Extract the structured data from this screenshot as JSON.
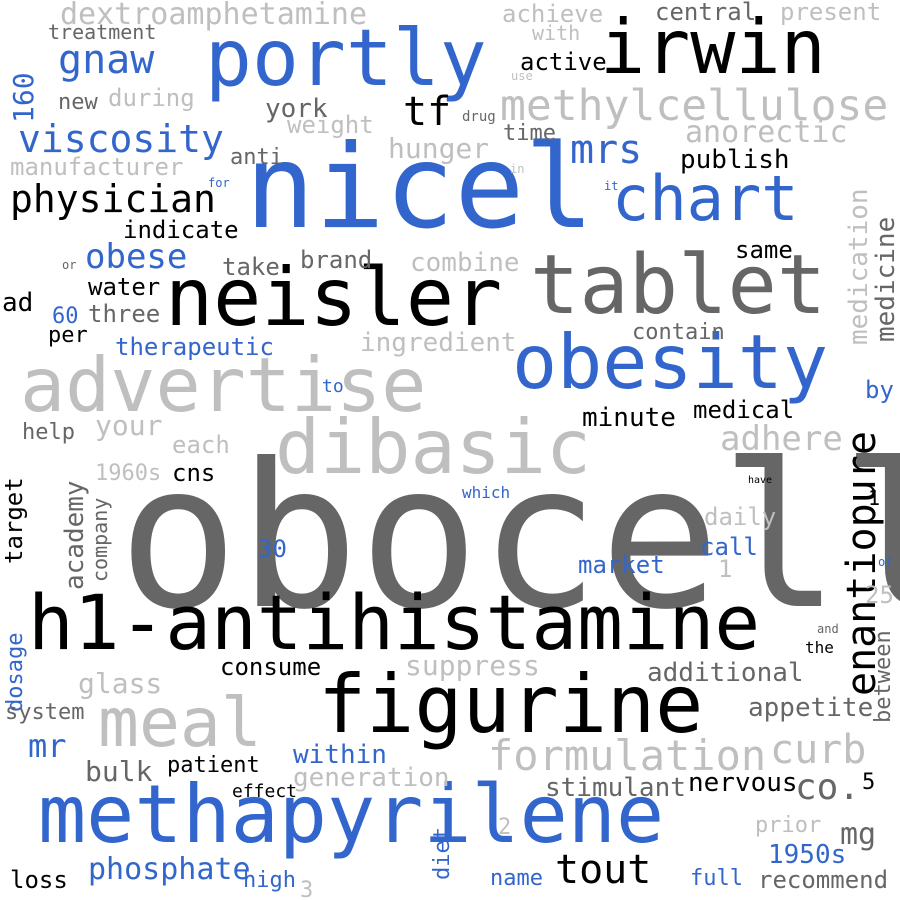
{
  "palette": {
    "black": "#000000",
    "dark_gray": "#666666",
    "light_gray": "#bfbfbf",
    "blue": "#3366cc"
  },
  "words": [
    {
      "text": "obocell",
      "color": "dark_gray"
    },
    {
      "text": "nicel",
      "color": "blue"
    },
    {
      "text": "h1-antihistamine",
      "color": "black"
    },
    {
      "text": "methapyrilene",
      "color": "blue"
    },
    {
      "text": "figurine",
      "color": "black"
    },
    {
      "text": "tablet",
      "color": "dark_gray"
    },
    {
      "text": "neisler",
      "color": "black"
    },
    {
      "text": "advertise",
      "color": "light_gray"
    },
    {
      "text": "dibasic",
      "color": "light_gray"
    },
    {
      "text": "obesity",
      "color": "blue"
    },
    {
      "text": "portly",
      "color": "blue"
    },
    {
      "text": "irwin",
      "color": "black"
    },
    {
      "text": "chart",
      "color": "blue"
    },
    {
      "text": "meal",
      "color": "light_gray"
    },
    {
      "text": "methylcellulose",
      "color": "light_gray"
    },
    {
      "text": "formulation",
      "color": "light_gray"
    },
    {
      "text": "enantiopure",
      "color": "black"
    },
    {
      "text": "physician",
      "color": "black"
    },
    {
      "text": "viscosity",
      "color": "blue"
    },
    {
      "text": "curb",
      "color": "light_gray"
    },
    {
      "text": "tout",
      "color": "black"
    },
    {
      "text": "gnaw",
      "color": "blue"
    },
    {
      "text": "dextroamphetamine",
      "color": "light_gray"
    },
    {
      "text": "tf",
      "color": "black"
    },
    {
      "text": "mrs",
      "color": "blue"
    },
    {
      "text": "adhere",
      "color": "light_gray"
    },
    {
      "text": "co.",
      "color": "dark_gray"
    },
    {
      "text": "obese",
      "color": "blue"
    },
    {
      "text": "phosphate",
      "color": "blue"
    },
    {
      "text": "anorectic",
      "color": "light_gray"
    },
    {
      "text": "mr",
      "color": "blue"
    },
    {
      "text": "mg",
      "color": "dark_gray"
    },
    {
      "text": "1950s",
      "color": "blue"
    },
    {
      "text": "160",
      "color": "blue"
    },
    {
      "text": "hunger",
      "color": "light_gray"
    },
    {
      "text": "medication",
      "color": "light_gray"
    },
    {
      "text": "medicine",
      "color": "dark_gray"
    },
    {
      "text": "academy",
      "color": "dark_gray"
    },
    {
      "text": "suppress",
      "color": "light_gray"
    },
    {
      "text": "glass",
      "color": "light_gray"
    },
    {
      "text": "additional",
      "color": "dark_gray"
    },
    {
      "text": "appetite",
      "color": "dark_gray"
    },
    {
      "text": "bulk",
      "color": "dark_gray"
    },
    {
      "text": "stimulant",
      "color": "dark_gray"
    },
    {
      "text": "generation",
      "color": "light_gray"
    },
    {
      "text": "within",
      "color": "blue"
    },
    {
      "text": "nervous",
      "color": "black"
    },
    {
      "text": "ingredient",
      "color": "light_gray"
    },
    {
      "text": "therapeutic",
      "color": "blue"
    },
    {
      "text": "combine",
      "color": "light_gray"
    },
    {
      "text": "manufacturer",
      "color": "light_gray"
    },
    {
      "text": "weight",
      "color": "light_gray"
    },
    {
      "text": "central",
      "color": "dark_gray"
    },
    {
      "text": "present",
      "color": "light_gray"
    },
    {
      "text": "achieve",
      "color": "light_gray"
    },
    {
      "text": "active",
      "color": "black"
    },
    {
      "text": "with",
      "color": "light_gray"
    },
    {
      "text": "treatment",
      "color": "dark_gray"
    },
    {
      "text": "new",
      "color": "dark_gray"
    },
    {
      "text": "during",
      "color": "light_gray"
    },
    {
      "text": "york",
      "color": "dark_gray"
    },
    {
      "text": "time",
      "color": "dark_gray"
    },
    {
      "text": "publish",
      "color": "black"
    },
    {
      "text": "anti",
      "color": "dark_gray"
    },
    {
      "text": "indicate",
      "color": "black"
    },
    {
      "text": "take",
      "color": "dark_gray"
    },
    {
      "text": "brand",
      "color": "dark_gray"
    },
    {
      "text": "same",
      "color": "black"
    },
    {
      "text": "water",
      "color": "black"
    },
    {
      "text": "three",
      "color": "dark_gray"
    },
    {
      "text": "60",
      "color": "blue"
    },
    {
      "text": "ad",
      "color": "black"
    },
    {
      "text": "per",
      "color": "black"
    },
    {
      "text": "contain",
      "color": "dark_gray"
    },
    {
      "text": "minute",
      "color": "black"
    },
    {
      "text": "medical",
      "color": "black"
    },
    {
      "text": "help",
      "color": "dark_gray"
    },
    {
      "text": "your",
      "color": "light_gray"
    },
    {
      "text": "each",
      "color": "light_gray"
    },
    {
      "text": "1960s",
      "color": "light_gray"
    },
    {
      "text": "cns",
      "color": "black"
    },
    {
      "text": "target",
      "color": "black"
    },
    {
      "text": "company",
      "color": "dark_gray"
    },
    {
      "text": "30",
      "color": "blue"
    },
    {
      "text": "daily",
      "color": "light_gray"
    },
    {
      "text": "call",
      "color": "blue"
    },
    {
      "text": "market",
      "color": "blue"
    },
    {
      "text": "1",
      "color": "light_gray"
    },
    {
      "text": "25",
      "color": "light_gray"
    },
    {
      "text": "between",
      "color": "dark_gray"
    },
    {
      "text": "dosage",
      "color": "blue"
    },
    {
      "text": "consume",
      "color": "black"
    },
    {
      "text": "system",
      "color": "dark_gray"
    },
    {
      "text": "patient",
      "color": "black"
    },
    {
      "text": "effect",
      "color": "black"
    },
    {
      "text": "prior",
      "color": "light_gray"
    },
    {
      "text": "5",
      "color": "black"
    },
    {
      "text": "diet",
      "color": "blue"
    },
    {
      "text": "loss",
      "color": "black"
    },
    {
      "text": "high",
      "color": "blue"
    },
    {
      "text": "name",
      "color": "blue"
    },
    {
      "text": "full",
      "color": "blue"
    },
    {
      "text": "recommend",
      "color": "dark_gray"
    },
    {
      "text": "2",
      "color": "light_gray"
    },
    {
      "text": "3",
      "color": "light_gray"
    },
    {
      "text": "by",
      "color": "blue"
    },
    {
      "text": "to",
      "color": "blue"
    },
    {
      "text": "which",
      "color": "blue"
    },
    {
      "text": "have",
      "color": "black"
    },
    {
      "text": "of",
      "color": "blue"
    },
    {
      "text": "and",
      "color": "dark_gray"
    },
    {
      "text": "the",
      "color": "black"
    },
    {
      "text": "for",
      "color": "blue"
    },
    {
      "text": "in",
      "color": "light_gray"
    },
    {
      "text": "it",
      "color": "blue"
    },
    {
      "text": "or",
      "color": "dark_gray"
    },
    {
      "text": "use",
      "color": "light_gray"
    },
    {
      "text": "drug",
      "color": "dark_gray"
    },
    {
      "text": "1",
      "color": "black"
    }
  ]
}
